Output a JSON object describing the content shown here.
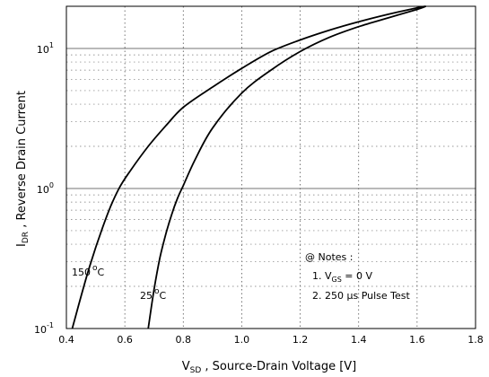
{
  "chart_data": {
    "type": "line",
    "title": "",
    "xlabel": "Vₛₑ , Source-Drain Voltage  [V]",
    "xlabel_parts": {
      "main": "V",
      "sub": "SD",
      "rest": " ,  Source-Drain Voltage   [V]"
    },
    "ylabel_parts": {
      "main": "I",
      "sub": "DR",
      "rest": " ,  Reverse Drain Current"
    },
    "x_scale": "linear",
    "y_scale": "log",
    "xlim": [
      0.4,
      1.8
    ],
    "ylim": [
      0.1,
      20
    ],
    "x_ticks": [
      0.4,
      0.6,
      0.8,
      1.0,
      1.2,
      1.4,
      1.6,
      1.8
    ],
    "x_tick_labels": [
      "0.4",
      "0.6",
      "0.8",
      "1.0",
      "1.2",
      "1.4",
      "1.6",
      "1.8"
    ],
    "y_ticks": [
      0.1,
      1,
      10
    ],
    "y_tick_labels": [
      {
        "base": "10",
        "exp": "-1"
      },
      {
        "base": "10",
        "exp": "0"
      },
      {
        "base": "10",
        "exp": "1"
      }
    ],
    "grid": true,
    "series": [
      {
        "name": "150 °C",
        "label_parts": {
          "value": "150",
          "unit": "C"
        },
        "x": [
          0.42,
          0.48,
          0.54,
          0.58,
          0.62,
          0.68,
          0.74,
          0.8,
          0.9,
          1.0,
          1.1,
          1.2,
          1.3,
          1.4,
          1.5,
          1.6,
          1.63
        ],
        "y": [
          0.1,
          0.28,
          0.65,
          1.0,
          1.35,
          2.0,
          2.8,
          3.8,
          5.3,
          7.2,
          9.5,
          11.5,
          13.5,
          15.5,
          17.5,
          19.5,
          20
        ]
      },
      {
        "name": "25 °C",
        "label_parts": {
          "value": "25",
          "unit": "C"
        },
        "x": [
          0.68,
          0.7,
          0.72,
          0.74,
          0.76,
          0.78,
          0.8,
          0.84,
          0.9,
          1.0,
          1.1,
          1.2,
          1.3,
          1.4,
          1.5,
          1.6,
          1.63
        ],
        "y": [
          0.1,
          0.19,
          0.32,
          0.47,
          0.65,
          0.85,
          1.05,
          1.6,
          2.7,
          4.8,
          7.0,
          9.5,
          12.0,
          14.3,
          16.5,
          19.0,
          20
        ]
      }
    ],
    "annotations": {
      "notes_title": "@ Notes :",
      "note1_prefix": "1. V",
      "note1_sub": "GS",
      "note1_suffix": " = 0 V",
      "note2": "2. 250 μs Pulse Test"
    }
  }
}
